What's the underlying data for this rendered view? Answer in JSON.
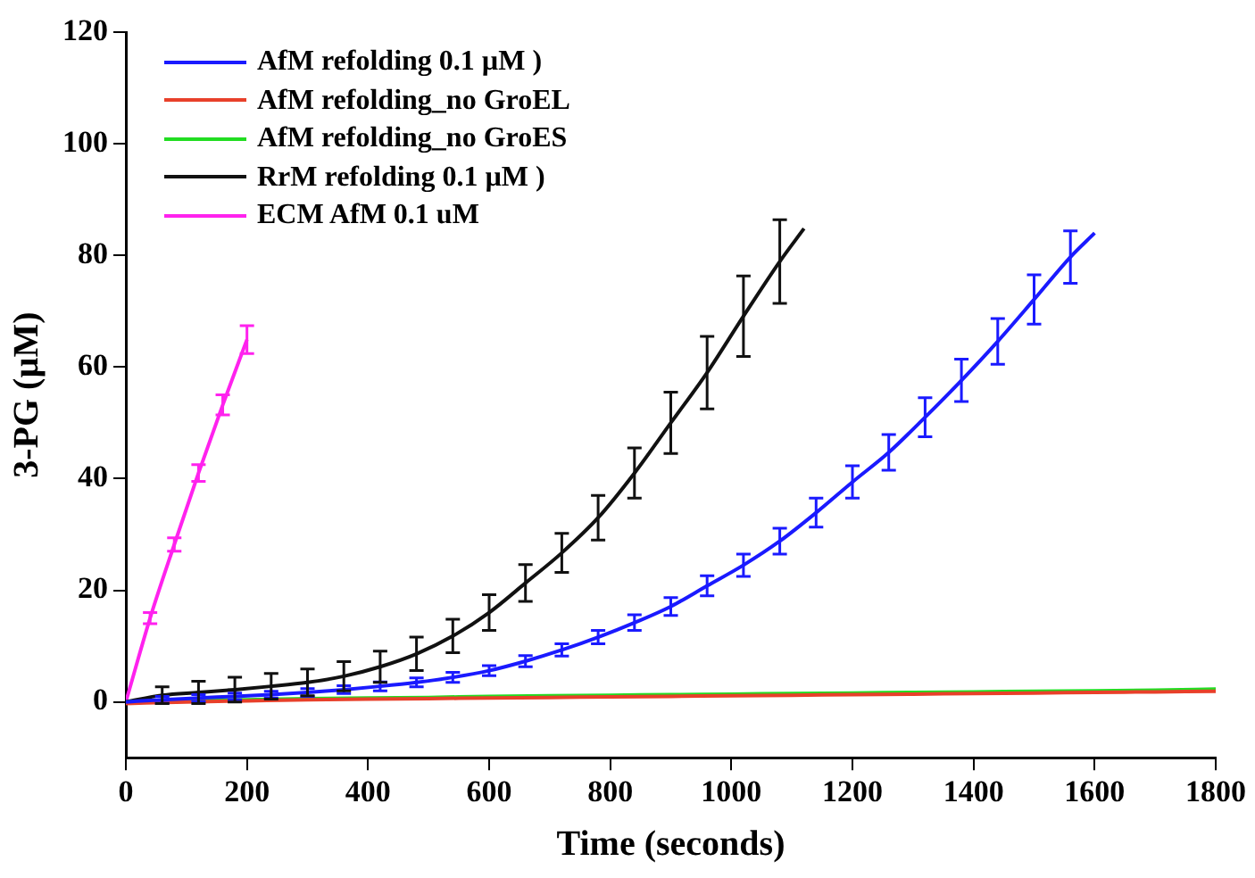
{
  "chart_data": {
    "type": "line",
    "xlabel": "Time (seconds)",
    "ylabel": "3-PG (µM)",
    "xlim": [
      0,
      1800
    ],
    "xticks": [
      0,
      200,
      400,
      600,
      800,
      1000,
      1200,
      1400,
      1600,
      1800
    ],
    "ylim": [
      -10,
      120
    ],
    "yticks": [
      0,
      20,
      40,
      60,
      80,
      100,
      120
    ],
    "grid": false,
    "legend": "top left",
    "line_style": "solid",
    "series": [
      {
        "name": "AfM refolding 0.1 µM )",
        "color": "#1a1aff",
        "x": [
          0,
          60,
          120,
          180,
          240,
          300,
          360,
          420,
          480,
          540,
          600,
          660,
          720,
          780,
          840,
          900,
          960,
          1020,
          1080,
          1140,
          1200,
          1260,
          1320,
          1380,
          1440,
          1500,
          1560,
          1600
        ],
        "values": [
          0,
          0.4,
          0.7,
          1.0,
          1.3,
          1.7,
          2.2,
          2.8,
          3.5,
          4.4,
          5.6,
          7.3,
          9.3,
          11.6,
          14.2,
          17.1,
          20.8,
          24.5,
          28.8,
          33.9,
          39.4,
          44.7,
          51,
          57.6,
          64.6,
          72.1,
          79.7,
          84
        ],
        "errors": [
          null,
          0.6,
          0.6,
          0.6,
          0.6,
          0.7,
          0.7,
          0.8,
          0.8,
          0.9,
          0.9,
          1,
          1.1,
          1.2,
          1.4,
          1.6,
          1.8,
          2,
          2.3,
          2.6,
          2.9,
          3.2,
          3.5,
          3.8,
          4.1,
          4.4,
          4.7,
          null
        ]
      },
      {
        "name": "AfM refolding_no GroEL",
        "color": "#e8402a",
        "x": [
          0,
          100,
          200,
          300,
          400,
          500,
          600,
          700,
          800,
          900,
          1000,
          1100,
          1200,
          1300,
          1400,
          1500,
          1600,
          1700,
          1800
        ],
        "values": [
          -0.3,
          0,
          0.2,
          0.4,
          0.5,
          0.6,
          0.7,
          0.8,
          0.9,
          1.0,
          1.1,
          1.2,
          1.3,
          1.4,
          1.5,
          1.6,
          1.7,
          1.8,
          1.9
        ]
      },
      {
        "name": "AfM refolding_no GroES",
        "color": "#22dd22",
        "x": [
          0,
          100,
          200,
          300,
          400,
          500,
          600,
          700,
          800,
          900,
          1000,
          1100,
          1200,
          1300,
          1400,
          1500,
          1600,
          1700,
          1800
        ],
        "values": [
          0,
          0.2,
          0.4,
          0.6,
          0.7,
          0.8,
          1.0,
          1.1,
          1.2,
          1.3,
          1.4,
          1.5,
          1.6,
          1.7,
          1.8,
          1.9,
          2.0,
          2.1,
          2.3
        ]
      },
      {
        "name": "RrM refolding 0.1 µM )",
        "color": "#111111",
        "x": [
          0,
          60,
          120,
          180,
          240,
          300,
          360,
          420,
          480,
          540,
          600,
          660,
          720,
          780,
          840,
          900,
          960,
          1020,
          1080,
          1120
        ],
        "values": [
          0,
          1.2,
          1.7,
          2.2,
          2.8,
          3.5,
          4.6,
          6.3,
          8.6,
          11.8,
          16,
          21.3,
          26.7,
          33,
          41,
          50,
          59,
          69.1,
          78.9,
          84.8
        ],
        "errors": [
          null,
          1.5,
          2,
          2.2,
          2.3,
          2.4,
          2.6,
          2.8,
          3,
          3,
          3.2,
          3.3,
          3.5,
          4,
          4.5,
          5.5,
          6.5,
          7.2,
          7.5,
          null
        ]
      },
      {
        "name": "ECM AfM 0.1 uM",
        "color": "#ff22ee",
        "x": [
          0,
          40,
          80,
          120,
          160,
          200
        ],
        "values": [
          0,
          15,
          28.2,
          41,
          53.2,
          64.9
        ],
        "errors": [
          null,
          1,
          1.2,
          1.5,
          1.8,
          2.5
        ]
      }
    ]
  }
}
